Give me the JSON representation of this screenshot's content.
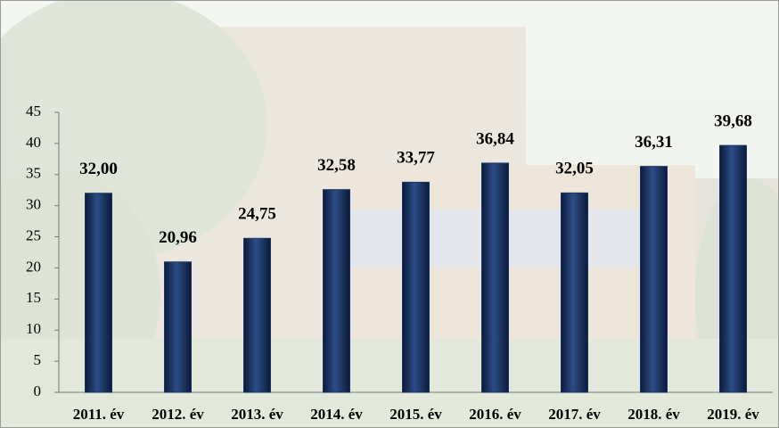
{
  "chart_data": {
    "type": "bar",
    "categories": [
      "2011. év",
      "2012. év",
      "2013. év",
      "2014. év",
      "2015. év",
      "2016. év",
      "2017. év",
      "2018. év",
      "2019. év"
    ],
    "values": [
      32,
      20.96,
      24.75,
      32.58,
      33.77,
      36.84,
      32.05,
      36.31,
      39.68
    ],
    "value_labels": [
      "32,00",
      "20,96",
      "24,75",
      "32,58",
      "33,77",
      "36,84",
      "32,05",
      "36,31",
      "39,68"
    ],
    "color": "#1c3566",
    "ylim": [
      0,
      45
    ],
    "yticks": [
      0,
      5,
      10,
      15,
      20,
      25,
      30,
      35,
      40,
      45
    ]
  }
}
